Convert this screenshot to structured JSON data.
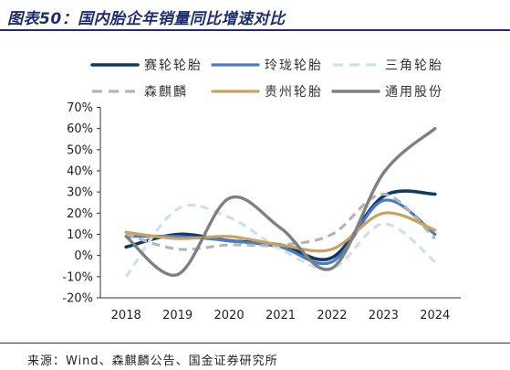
{
  "figure": {
    "source": "来源：Wind、森麒麟公告、国金证券研究所"
  },
  "colors": {
    "title": "#1f2d6e",
    "axis": "#333333"
  },
  "chart_data": {
    "type": "line",
    "title": "图表50：国内胎企年销量同比增速对比",
    "categories": [
      "2018",
      "2019",
      "2020",
      "2021",
      "2022",
      "2023",
      "2024"
    ],
    "ylim": [
      -20,
      70
    ],
    "y_ticks": [
      70,
      60,
      50,
      40,
      30,
      20,
      10,
      0,
      -10,
      -20
    ],
    "y_tick_labels": [
      "70%",
      "60%",
      "50%",
      "40%",
      "30%",
      "20%",
      "10%",
      "0%",
      "-10%",
      "-20%"
    ],
    "y_unit": "%",
    "grid": false,
    "smoothed": true,
    "legend_position": "top",
    "series": [
      {
        "name": "赛轮轮胎",
        "color": "#0e3a63",
        "style": "solid",
        "values": [
          4,
          10,
          7,
          5,
          -1,
          28,
          29
        ]
      },
      {
        "name": "玲珑轮胎",
        "color": "#4a7bc4",
        "style": "solid",
        "values": [
          9,
          9,
          7,
          4,
          -3,
          26,
          10
        ]
      },
      {
        "name": "三角轮胎",
        "color": "#cde0f2",
        "style": "dashed",
        "values": [
          -10,
          22,
          18,
          3,
          -6,
          15,
          -3
        ]
      },
      {
        "name": "森麒麟",
        "color": "#b4b4b4",
        "style": "dashed",
        "values": [
          10,
          3,
          5,
          5,
          10,
          29,
          8
        ]
      },
      {
        "name": "贵州轮胎",
        "color": "#c8a35e",
        "style": "solid",
        "values": [
          11,
          8,
          9,
          5,
          3,
          20,
          12
        ]
      },
      {
        "name": "通用股份",
        "color": "#808080",
        "style": "solid",
        "values": [
          9,
          -9,
          27,
          13,
          -6,
          39,
          60
        ]
      }
    ]
  }
}
